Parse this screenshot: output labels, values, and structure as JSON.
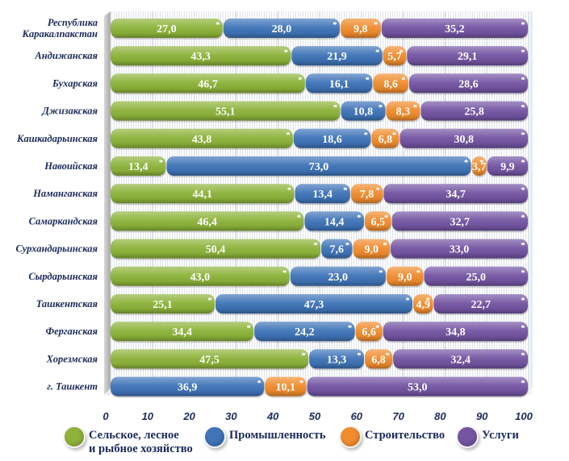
{
  "chart_data": {
    "type": "bar",
    "orientation": "horizontal",
    "stacked": true,
    "title": "",
    "xlabel": "",
    "ylabel": "",
    "xlim": [
      0,
      100
    ],
    "x_ticks": [
      "0",
      "10",
      "20",
      "30",
      "40",
      "50",
      "60",
      "70",
      "80",
      "90",
      "100"
    ],
    "grid": true,
    "legend_position": "bottom",
    "categories": [
      "Республика\nКаракалпакстан",
      "Андижанская",
      "Бухарская",
      "Джизакская",
      "Кашкадарьинская",
      "Навоийская",
      "Наманганская",
      "Самаркандская",
      "Сурхандарьинская",
      "Сырдарьинская",
      "Ташкентская",
      "Ферганская",
      "Хорезмская",
      "г. Ташкент"
    ],
    "series": [
      {
        "name": "Сельское, лесное\nи рыбное хозяйство",
        "color": "#8db33a",
        "values": [
          27.0,
          43.3,
          46.7,
          55.1,
          43.8,
          13.4,
          44.1,
          46.4,
          50.4,
          43.0,
          25.1,
          34.4,
          47.5,
          null
        ],
        "labels": [
          "27,0",
          "43,3",
          "46,7",
          "55,1",
          "43,8",
          "13,4",
          "44,1",
          "46,4",
          "50,4",
          "43,0",
          "25,1",
          "34,4",
          "47,5",
          ""
        ]
      },
      {
        "name": "Промышленность",
        "color": "#3f74b8",
        "values": [
          28.0,
          21.9,
          16.1,
          10.8,
          18.6,
          73.0,
          13.4,
          14.4,
          7.6,
          23.0,
          47.3,
          24.2,
          13.3,
          36.9
        ],
        "labels": [
          "28,0",
          "21,9",
          "16,1",
          "10,8",
          "18,6",
          "73,0",
          "13,4",
          "14,4",
          "7,6",
          "23,0",
          "47,3",
          "24,2",
          "13,3",
          "36,9"
        ]
      },
      {
        "name": "Строительство",
        "color": "#f08c2e",
        "values": [
          9.8,
          5.7,
          8.6,
          8.3,
          6.8,
          3.7,
          7.8,
          6.5,
          9.0,
          9.0,
          4.9,
          6.6,
          6.8,
          10.1
        ],
        "labels": [
          "9,8",
          "5,7",
          "8,6",
          "8,3",
          "6,8",
          "3,7",
          "7,8",
          "6,5",
          "9,0",
          "9,0",
          "4,9",
          "6,6",
          "6,8",
          "10,1"
        ]
      },
      {
        "name": "Услуги",
        "color": "#7455a3",
        "values": [
          35.2,
          29.1,
          28.6,
          25.8,
          30.8,
          9.9,
          34.7,
          32.7,
          33.0,
          25.0,
          22.7,
          34.8,
          32.4,
          53.0
        ],
        "labels": [
          "35,2",
          "29,1",
          "28,6",
          "25,8",
          "30,8",
          "9,9",
          "34,7",
          "32,7",
          "33,0",
          "25,0",
          "22,7",
          "34,8",
          "32,4",
          "53,0"
        ]
      }
    ]
  }
}
